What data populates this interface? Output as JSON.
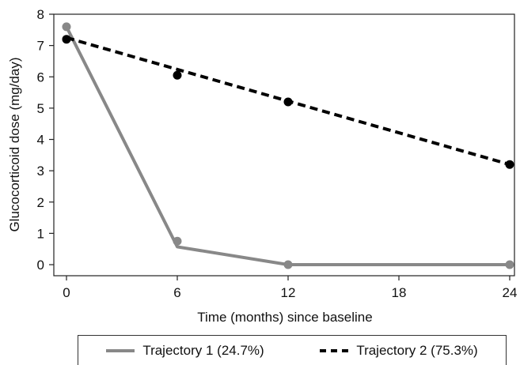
{
  "chart_data": {
    "type": "line",
    "title": "",
    "xlabel": "Time (months) since baseline",
    "ylabel": "Glucocorticoid dose (mg/day)",
    "xlim": [
      0,
      24
    ],
    "ylim": [
      0,
      8
    ],
    "xticks": [
      0,
      6,
      12,
      18,
      24
    ],
    "yticks": [
      0,
      1,
      2,
      3,
      4,
      5,
      6,
      7,
      8
    ],
    "grid": false,
    "legend_position": "bottom",
    "series": [
      {
        "name": "Trajectory 1 (24.7%)",
        "color": "#888888",
        "style": "solid",
        "observed": [
          {
            "x": 0,
            "y": 7.6
          },
          {
            "x": 6,
            "y": 0.75
          },
          {
            "x": 12,
            "y": 0.0
          },
          {
            "x": 24,
            "y": 0.0
          }
        ],
        "fitted": [
          {
            "x": 0,
            "y": 7.6
          },
          {
            "x": 6,
            "y": 0.57
          },
          {
            "x": 12,
            "y": 0.0
          },
          {
            "x": 24,
            "y": 0.0
          }
        ]
      },
      {
        "name": "Trajectory 2 (75.3%)",
        "color": "#000000",
        "style": "dashed",
        "observed": [
          {
            "x": 0,
            "y": 7.2
          },
          {
            "x": 6,
            "y": 6.05
          },
          {
            "x": 12,
            "y": 5.2
          },
          {
            "x": 24,
            "y": 3.2
          }
        ],
        "fitted": [
          {
            "x": 0,
            "y": 7.25
          },
          {
            "x": 24,
            "y": 3.2
          }
        ]
      }
    ]
  }
}
